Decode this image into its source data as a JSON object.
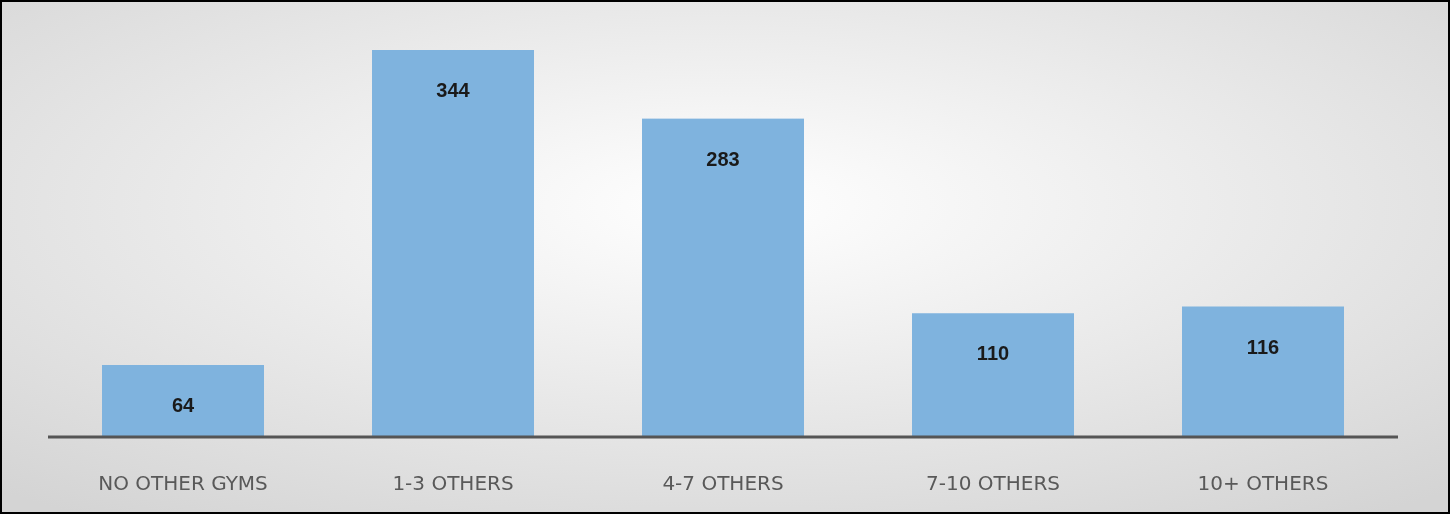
{
  "chart_data": {
    "type": "bar",
    "categories": [
      "NO OTHER GYMS",
      "1-3 OTHERS",
      "4-7 OTHERS",
      "7-10 OTHERS",
      "10+ OTHERS"
    ],
    "values": [
      64,
      344,
      283,
      110,
      116
    ],
    "color": "#7fb3de",
    "data_labels": true
  }
}
